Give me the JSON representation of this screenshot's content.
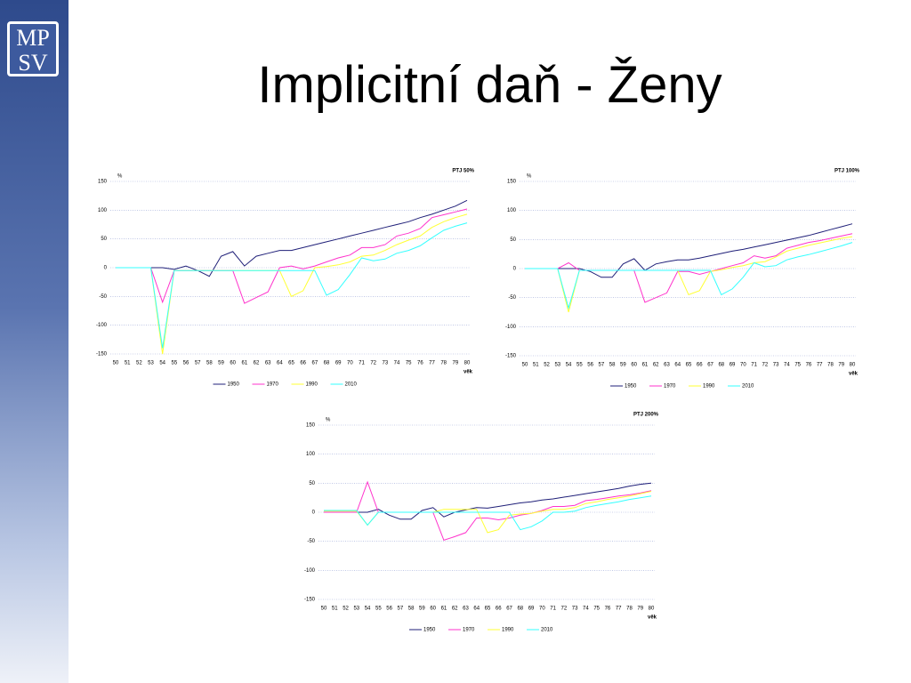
{
  "title": "Implicitní daň - Ženy",
  "logo": [
    "MP",
    "SV"
  ],
  "chart_data": [
    {
      "type": "line",
      "title": "PTJ 50%",
      "y_label": "%",
      "x_label": "věk",
      "categories": [
        50,
        51,
        52,
        53,
        54,
        55,
        56,
        57,
        58,
        59,
        60,
        61,
        62,
        63,
        64,
        65,
        66,
        67,
        68,
        69,
        70,
        71,
        72,
        73,
        74,
        75,
        76,
        77,
        78,
        79,
        80
      ],
      "ylim": [
        -150,
        150
      ],
      "yticks": [
        -150,
        -100,
        -50,
        0,
        50,
        100,
        150
      ],
      "grid": true,
      "series": [
        {
          "name": "1950",
          "color": "#1f1f78",
          "values": [
            0,
            0,
            0,
            0,
            0,
            -3,
            3,
            -5,
            -15,
            20,
            28,
            3,
            20,
            25,
            30,
            30,
            35,
            40,
            45,
            50,
            55,
            60,
            65,
            70,
            75,
            80,
            87,
            93,
            100,
            107,
            117
          ]
        },
        {
          "name": "1970",
          "color": "#ff33cc",
          "values": [
            0,
            0,
            0,
            0,
            -60,
            -5,
            -5,
            -5,
            -5,
            -5,
            -5,
            -62,
            -52,
            -42,
            0,
            3,
            -2,
            3,
            10,
            17,
            22,
            35,
            35,
            40,
            55,
            60,
            68,
            87,
            92,
            97,
            102
          ]
        },
        {
          "name": "1990",
          "color": "#ffff33",
          "values": [
            0,
            0,
            0,
            0,
            -150,
            -5,
            -5,
            -5,
            -5,
            -5,
            -5,
            -5,
            -5,
            -5,
            -5,
            -50,
            -40,
            0,
            2,
            5,
            10,
            20,
            22,
            30,
            40,
            48,
            55,
            70,
            80,
            87,
            93
          ]
        },
        {
          "name": "2010",
          "color": "#33ffff",
          "values": [
            0,
            0,
            0,
            0,
            -140,
            -5,
            -5,
            -5,
            -5,
            -5,
            -5,
            -5,
            -5,
            -5,
            -5,
            -5,
            -5,
            -5,
            -48,
            -38,
            -12,
            17,
            12,
            15,
            25,
            30,
            38,
            52,
            65,
            72,
            78
          ]
        }
      ]
    },
    {
      "type": "line",
      "title": "PTJ 100%",
      "y_label": "%",
      "x_label": "věk",
      "categories": [
        50,
        51,
        52,
        53,
        54,
        55,
        56,
        57,
        58,
        59,
        60,
        61,
        62,
        63,
        64,
        65,
        66,
        67,
        68,
        69,
        70,
        71,
        72,
        73,
        74,
        75,
        76,
        77,
        78,
        79,
        80
      ],
      "ylim": [
        -150,
        150
      ],
      "yticks": [
        -150,
        -100,
        -50,
        0,
        50,
        100,
        150
      ],
      "grid": true,
      "series": [
        {
          "name": "1950",
          "color": "#1f1f78",
          "values": [
            0,
            0,
            0,
            0,
            0,
            0,
            -5,
            -15,
            -15,
            8,
            17,
            -3,
            8,
            12,
            15,
            15,
            18,
            22,
            26,
            30,
            33,
            37,
            41,
            45,
            49,
            53,
            57,
            62,
            67,
            72,
            77
          ]
        },
        {
          "name": "1970",
          "color": "#ff33cc",
          "values": [
            0,
            0,
            0,
            0,
            10,
            -3,
            -3,
            -3,
            -3,
            -3,
            -3,
            -58,
            -50,
            -42,
            -5,
            -5,
            -10,
            -5,
            0,
            5,
            10,
            22,
            18,
            22,
            35,
            40,
            45,
            48,
            52,
            56,
            60
          ]
        },
        {
          "name": "1990",
          "color": "#ffff33",
          "values": [
            0,
            0,
            0,
            0,
            -75,
            -3,
            -3,
            -3,
            -3,
            -3,
            -3,
            -3,
            -3,
            -3,
            -3,
            -45,
            -38,
            -5,
            -2,
            2,
            5,
            10,
            12,
            20,
            30,
            35,
            40,
            44,
            48,
            52,
            55
          ]
        },
        {
          "name": "2010",
          "color": "#33ffff",
          "values": [
            0,
            0,
            0,
            0,
            -68,
            -3,
            -3,
            -3,
            -3,
            -3,
            -3,
            -3,
            -3,
            -3,
            -3,
            -3,
            -3,
            -3,
            -45,
            -35,
            -15,
            10,
            3,
            5,
            15,
            20,
            24,
            29,
            34,
            39,
            45
          ]
        }
      ]
    },
    {
      "type": "line",
      "title": "PTJ 200%",
      "y_label": "%",
      "x_label": "věk",
      "categories": [
        50,
        51,
        52,
        53,
        54,
        55,
        56,
        57,
        58,
        59,
        60,
        61,
        62,
        63,
        64,
        65,
        66,
        67,
        68,
        69,
        70,
        71,
        72,
        73,
        74,
        75,
        76,
        77,
        78,
        79,
        80
      ],
      "ylim": [
        -150,
        150
      ],
      "yticks": [
        -150,
        -100,
        -50,
        0,
        50,
        100,
        150
      ],
      "grid": true,
      "series": [
        {
          "name": "1950",
          "color": "#1f1f78",
          "values": [
            0,
            0,
            0,
            0,
            0,
            5,
            -5,
            -12,
            -12,
            3,
            8,
            -8,
            0,
            4,
            8,
            7,
            10,
            13,
            16,
            18,
            21,
            23,
            26,
            29,
            32,
            35,
            38,
            41,
            45,
            48,
            50
          ]
        },
        {
          "name": "1970",
          "color": "#ff33cc",
          "values": [
            0,
            0,
            0,
            0,
            52,
            0,
            0,
            0,
            0,
            0,
            0,
            -48,
            -42,
            -35,
            -10,
            -10,
            -13,
            -10,
            -5,
            -2,
            3,
            10,
            10,
            12,
            20,
            22,
            25,
            28,
            30,
            33,
            37
          ]
        },
        {
          "name": "1990",
          "color": "#ffff33",
          "values": [
            2,
            2,
            2,
            2,
            -22,
            0,
            0,
            0,
            0,
            0,
            0,
            5,
            5,
            5,
            5,
            -35,
            -30,
            -5,
            -3,
            -2,
            2,
            5,
            5,
            8,
            15,
            18,
            22,
            25,
            28,
            32,
            36
          ]
        },
        {
          "name": "2010",
          "color": "#33ffff",
          "values": [
            3,
            3,
            3,
            3,
            -22,
            0,
            0,
            0,
            0,
            0,
            0,
            0,
            0,
            0,
            0,
            0,
            0,
            0,
            -30,
            -25,
            -15,
            0,
            0,
            2,
            8,
            12,
            15,
            18,
            22,
            25,
            28
          ]
        }
      ]
    }
  ]
}
